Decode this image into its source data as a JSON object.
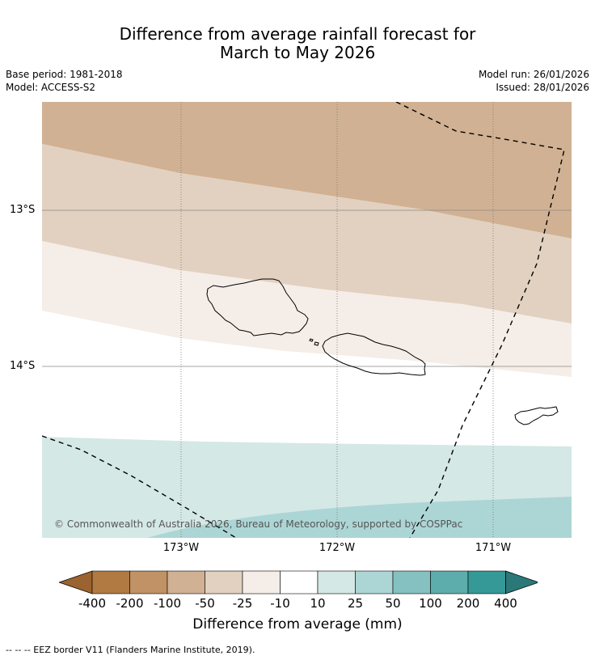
{
  "title": {
    "line1": "Difference from average rainfall forecast for",
    "line2": "March to May 2026"
  },
  "meta_left": {
    "base_period": "Base period: 1981-2018",
    "model": "Model: ACCESS-S2"
  },
  "meta_right": {
    "model_run": "Model run: 26/01/2026",
    "issued": "Issued: 28/01/2026"
  },
  "map": {
    "lat_labels": [
      "13°S",
      "14°S"
    ],
    "lon_labels": [
      "173°W",
      "172°W",
      "171°W"
    ],
    "copyright": "© Commonwealth of Australia 2026, Bureau of Meteorology, supported by COSPPac",
    "zone_colors": {
      "-50_to_-25": "#d1b193",
      "-25_to_-10": "#e2d1c0",
      "-10_to_10_light": "#f5ede8",
      "neutral": "#ffffff",
      "10_to_25": "#d4e8e6",
      "25_to_50": "#acd6d5"
    }
  },
  "colorbar": {
    "label": "Difference from average (mm)",
    "ticks": [
      "-400",
      "-200",
      "-100",
      "-50",
      "-25",
      "-10",
      "10",
      "25",
      "50",
      "100",
      "200",
      "400"
    ],
    "colors": [
      "#9b632f",
      "#b07a42",
      "#c09265",
      "#d1b193",
      "#e2d1c0",
      "#f5ede8",
      "#ffffff",
      "#d4e8e6",
      "#acd6d5",
      "#84c1c0",
      "#5cadab",
      "#349997",
      "#2b7878"
    ]
  },
  "footnote": "--  --  -- EEZ border V11 (Flanders Marine Institute, 2019)."
}
